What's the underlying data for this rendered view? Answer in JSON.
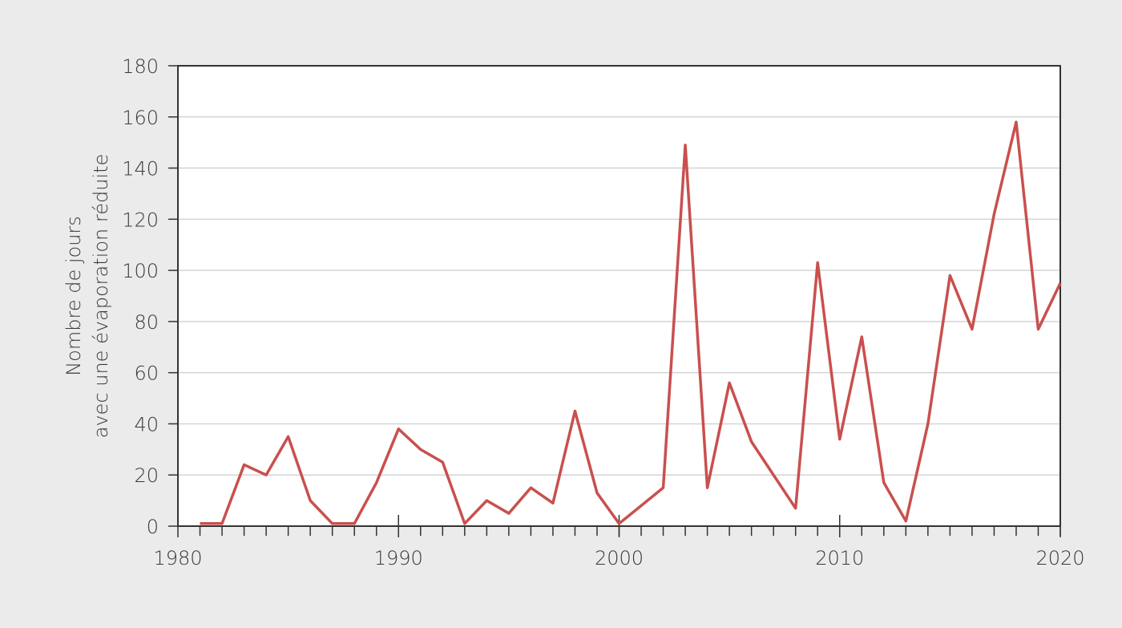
{
  "chart_data": {
    "type": "line",
    "y_label": [
      "Nombre de jours",
      "avec une évaporation réduite"
    ],
    "x": [
      1981,
      1982,
      1983,
      1984,
      1985,
      1986,
      1987,
      1988,
      1989,
      1990,
      1991,
      1992,
      1993,
      1994,
      1995,
      1996,
      1997,
      1998,
      1999,
      2000,
      2001,
      2002,
      2003,
      2004,
      2005,
      2006,
      2007,
      2008,
      2009,
      2010,
      2011,
      2012,
      2013,
      2014,
      2015,
      2016,
      2017,
      2018,
      2019,
      2020
    ],
    "series": [
      {
        "color": "#c8504e",
        "values": [
          1,
          1,
          24,
          20,
          35,
          10,
          1,
          1,
          17,
          38,
          30,
          25,
          1,
          10,
          5,
          15,
          9,
          45,
          13,
          1,
          8,
          15,
          149,
          15,
          56,
          33,
          20,
          7,
          103,
          34,
          74,
          17,
          2,
          40,
          98,
          77,
          122,
          158,
          77,
          95
        ]
      }
    ],
    "xlim": [
      1980,
      2020
    ],
    "xticks": [
      1980,
      1990,
      2000,
      2010,
      2020
    ],
    "ylim": [
      0,
      180
    ],
    "yticks": [
      0,
      20,
      40,
      60,
      80,
      100,
      120,
      140,
      160,
      180
    ],
    "grid": true
  }
}
